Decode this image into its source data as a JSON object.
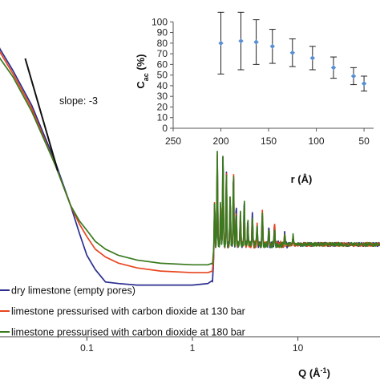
{
  "chart_data": [
    {
      "type": "line",
      "xlabel_main": "Q (Å",
      "xlabel_sup": "-1",
      "xlabel_end": ")",
      "xscale": "log",
      "xlim": [
        0.015,
        60
      ],
      "ylim": [
        0,
        100
      ],
      "x_ticks": [
        {
          "value": 0.1,
          "label": "0.1"
        },
        {
          "value": 1,
          "label": "1"
        },
        {
          "value": 10,
          "label": "10"
        }
      ],
      "annotation": {
        "text": "slope: -3",
        "line": {
          "x": [
            0.026,
            0.053
          ],
          "y": [
            89,
            53
          ]
        }
      },
      "legend_position": "bottom-left",
      "series": [
        {
          "name": "dry limestone (empty pores)",
          "color": "#2b2f8f",
          "x": [
            0.012,
            0.015,
            0.02,
            0.03,
            0.05,
            0.07,
            0.085,
            0.1,
            0.12,
            0.15,
            0.2,
            0.3,
            0.5,
            1,
            1.4,
            1.55
          ],
          "y": [
            100,
            92,
            85,
            74,
            56,
            42,
            33,
            26,
            21.5,
            17.5,
            17,
            16.5,
            16.5,
            16.5,
            17,
            18
          ]
        },
        {
          "name": "limestone pressurised with carbon dioxide at 130 bar",
          "color": "#e8451f",
          "x": [
            0.012,
            0.015,
            0.02,
            0.03,
            0.05,
            0.07,
            0.085,
            0.1,
            0.12,
            0.15,
            0.2,
            0.3,
            0.5,
            1,
            1.4,
            1.55
          ],
          "y": [
            99,
            91,
            84,
            73,
            55,
            42,
            36,
            32,
            28,
            25.5,
            23.5,
            22,
            21,
            20.5,
            20.5,
            21
          ]
        },
        {
          "name": "limestone pressurised with carbon dioxide at 180 bar",
          "color": "#3a7a1f",
          "x": [
            0.012,
            0.015,
            0.02,
            0.03,
            0.05,
            0.07,
            0.085,
            0.1,
            0.12,
            0.15,
            0.2,
            0.3,
            0.5,
            1,
            1.4,
            1.55
          ],
          "y": [
            96,
            89,
            83,
            72,
            55,
            42,
            37,
            34,
            30.5,
            28,
            26,
            24.5,
            23.5,
            23,
            23,
            23.5
          ]
        }
      ],
      "bragg_region": {
        "x_start": 1.55,
        "x_end": 60,
        "baseline": 29.5
      }
    },
    {
      "type": "scatter",
      "xlabel": "r (Å)",
      "ylabel_main": "C",
      "ylabel_sub": "ac",
      "ylabel_end": " (%)",
      "xlim": [
        250,
        40
      ],
      "ylim": [
        0,
        110
      ],
      "x_ticks": [
        250,
        200,
        150,
        100,
        50
      ],
      "y_ticks": [
        0,
        10,
        20,
        30,
        40,
        50,
        60,
        70,
        80,
        90,
        100
      ],
      "grid": false,
      "marker_color": "#5b8fd4",
      "points": [
        {
          "x": 200,
          "y": 80,
          "err": 29
        },
        {
          "x": 179,
          "y": 82,
          "err": 27
        },
        {
          "x": 163,
          "y": 81,
          "err": 21
        },
        {
          "x": 146,
          "y": 77,
          "err": 16
        },
        {
          "x": 125,
          "y": 71,
          "err": 13
        },
        {
          "x": 104,
          "y": 66,
          "err": 11
        },
        {
          "x": 82,
          "y": 57,
          "err": 10
        },
        {
          "x": 61,
          "y": 49,
          "err": 8
        },
        {
          "x": 50,
          "y": 42,
          "err": 7
        }
      ]
    }
  ]
}
